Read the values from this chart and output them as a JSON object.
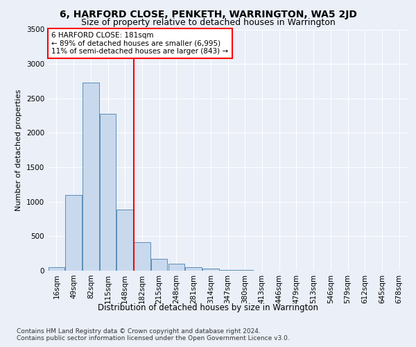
{
  "title": "6, HARFORD CLOSE, PENKETH, WARRINGTON, WA5 2JD",
  "subtitle": "Size of property relative to detached houses in Warrington",
  "xlabel": "Distribution of detached houses by size in Warrington",
  "ylabel": "Number of detached properties",
  "categories": [
    "16sqm",
    "49sqm",
    "82sqm",
    "115sqm",
    "148sqm",
    "182sqm",
    "215sqm",
    "248sqm",
    "281sqm",
    "314sqm",
    "347sqm",
    "380sqm",
    "413sqm",
    "446sqm",
    "479sqm",
    "513sqm",
    "546sqm",
    "579sqm",
    "612sqm",
    "645sqm",
    "678sqm"
  ],
  "values": [
    50,
    1100,
    2730,
    2280,
    890,
    415,
    170,
    100,
    50,
    35,
    15,
    8,
    4,
    2,
    2,
    1,
    0,
    0,
    0,
    0,
    0
  ],
  "bar_color": "#c9d9ed",
  "bar_edge_color": "#5b8db8",
  "red_line_index": 5,
  "annotation_text": "6 HARFORD CLOSE: 181sqm\n← 89% of detached houses are smaller (6,995)\n11% of semi-detached houses are larger (843) →",
  "annotation_box_color": "white",
  "annotation_box_edge_color": "red",
  "ylim": [
    0,
    3500
  ],
  "yticks": [
    0,
    500,
    1000,
    1500,
    2000,
    2500,
    3000,
    3500
  ],
  "background_color": "#eaeff8",
  "plot_bg_color": "#eaeff8",
  "grid_color": "white",
  "footer_line1": "Contains HM Land Registry data © Crown copyright and database right 2024.",
  "footer_line2": "Contains public sector information licensed under the Open Government Licence v3.0.",
  "title_fontsize": 10,
  "subtitle_fontsize": 9,
  "xlabel_fontsize": 8.5,
  "ylabel_fontsize": 8,
  "tick_fontsize": 7.5,
  "footer_fontsize": 6.5
}
